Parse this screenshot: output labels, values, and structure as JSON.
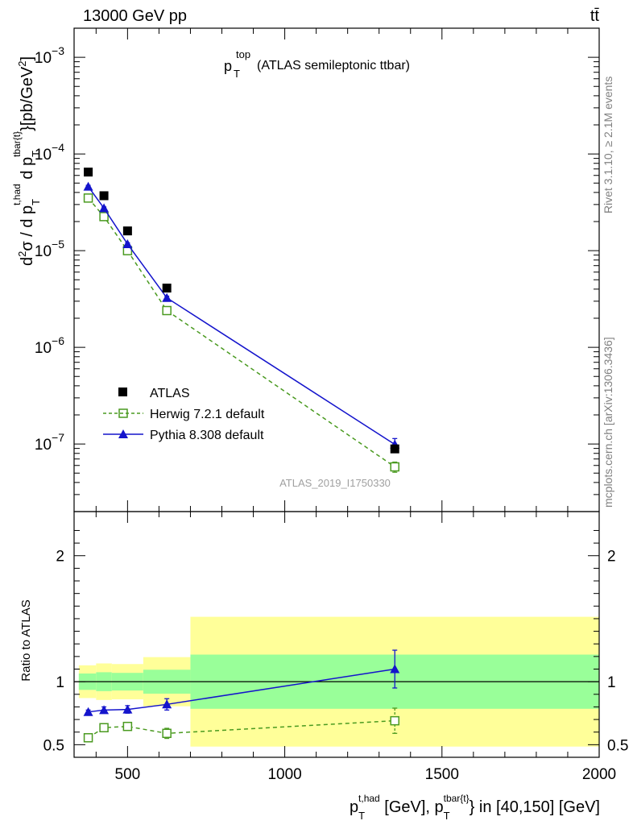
{
  "header": {
    "left": "13000 GeV pp",
    "right": "tt̄"
  },
  "side_labels": {
    "rivet": "Rivet 3.1.10, ≥ 2.1M events",
    "mcplots": "mcplots.cern.ch [arXiv:1306.3436]"
  },
  "chart_data": [
    {
      "type": "line",
      "panel": "main",
      "title": "(ATLAS semileptonic ttbar)",
      "title_prefix": "p",
      "title_sup": "top",
      "title_sub": "T",
      "ylabel": "d²σ / d p_T^{t,had} d p_T^{tbar{t}} [pb/GeV²]",
      "yscale": "log",
      "ylim": [
        2e-08,
        0.002
      ],
      "xlim": [
        330,
        2000
      ],
      "yticks": [
        {
          "value": 1e-07,
          "label": "10",
          "exp": "−7"
        },
        {
          "value": 1e-06,
          "label": "10",
          "exp": "−6"
        },
        {
          "value": 1e-05,
          "label": "10",
          "exp": "−5"
        },
        {
          "value": 0.0001,
          "label": "10",
          "exp": "−4"
        },
        {
          "value": 0.001,
          "label": "10",
          "exp": "−3"
        }
      ],
      "watermark": "ATLAS_2019_I1750330",
      "legend_position": "bottom-left",
      "series": [
        {
          "name": "ATLAS",
          "marker": "square-filled",
          "color": "#000000",
          "x": [
            375,
            425,
            500,
            625,
            1350
          ],
          "y": [
            6.5e-05,
            3.7e-05,
            1.6e-05,
            4.1e-06,
            8.9e-08
          ]
        },
        {
          "name": "Herwig 7.2.1 default",
          "marker": "square-open",
          "color": "#4a9a20",
          "dash": true,
          "x": [
            375,
            425,
            500,
            625,
            1350
          ],
          "y": [
            3.5e-05,
            2.25e-05,
            1e-05,
            2.4e-06,
            5.8e-08
          ],
          "err": [
            0.03,
            0.03,
            0.03,
            0.04,
            0.12
          ]
        },
        {
          "name": "Pythia 8.308 default",
          "marker": "triangle-filled",
          "color": "#1414cc",
          "x": [
            375,
            425,
            500,
            625,
            1350
          ],
          "y": [
            4.6e-05,
            2.75e-05,
            1.17e-05,
            3.25e-06,
            9.9e-08
          ],
          "err": [
            0.03,
            0.03,
            0.03,
            0.04,
            0.15
          ]
        }
      ]
    },
    {
      "type": "line",
      "panel": "ratio",
      "ylabel": "Ratio to ATLAS",
      "xlabel": "p_T^{t,had} [GeV], p_T^{tbar{t}} in [40,150] [GeV]",
      "ylim": [
        0.4,
        2.35
      ],
      "xlim": [
        330,
        2000
      ],
      "reference_line": 1,
      "yticks": [
        0.5,
        1,
        2
      ],
      "xticks": [
        500,
        1000,
        1500,
        2000
      ],
      "bands": [
        {
          "x0": 345,
          "x1": 400,
          "inner": [
            0.935,
            1.065
          ],
          "outer": [
            0.87,
            1.13
          ]
        },
        {
          "x0": 400,
          "x1": 450,
          "inner": [
            0.925,
            1.075
          ],
          "outer": [
            0.855,
            1.145
          ]
        },
        {
          "x0": 450,
          "x1": 550,
          "inner": [
            0.93,
            1.07
          ],
          "outer": [
            0.86,
            1.14
          ]
        },
        {
          "x0": 550,
          "x1": 700,
          "inner": [
            0.905,
            1.095
          ],
          "outer": [
            0.805,
            1.195
          ]
        },
        {
          "x0": 700,
          "x1": 2000,
          "inner": [
            0.785,
            1.215
          ],
          "outer": [
            0.485,
            1.515
          ]
        }
      ],
      "band_colors": {
        "inner": "#99ff99",
        "outer": "#ffff99"
      },
      "series": [
        {
          "name": "Herwig 7.2.1 default",
          "marker": "square-open",
          "color": "#4a9a20",
          "dash": true,
          "x": [
            375,
            425,
            500,
            625,
            1350
          ],
          "y": [
            0.555,
            0.635,
            0.645,
            0.59,
            0.69
          ],
          "err": [
            0.015,
            0.02,
            0.025,
            0.04,
            0.1
          ]
        },
        {
          "name": "Pythia 8.308 default",
          "marker": "triangle-filled",
          "color": "#1414cc",
          "x": [
            375,
            425,
            500,
            625,
            1350
          ],
          "y": [
            0.76,
            0.775,
            0.78,
            0.82,
            1.1
          ],
          "err": [
            0.015,
            0.025,
            0.03,
            0.045,
            0.15
          ]
        }
      ]
    }
  ]
}
